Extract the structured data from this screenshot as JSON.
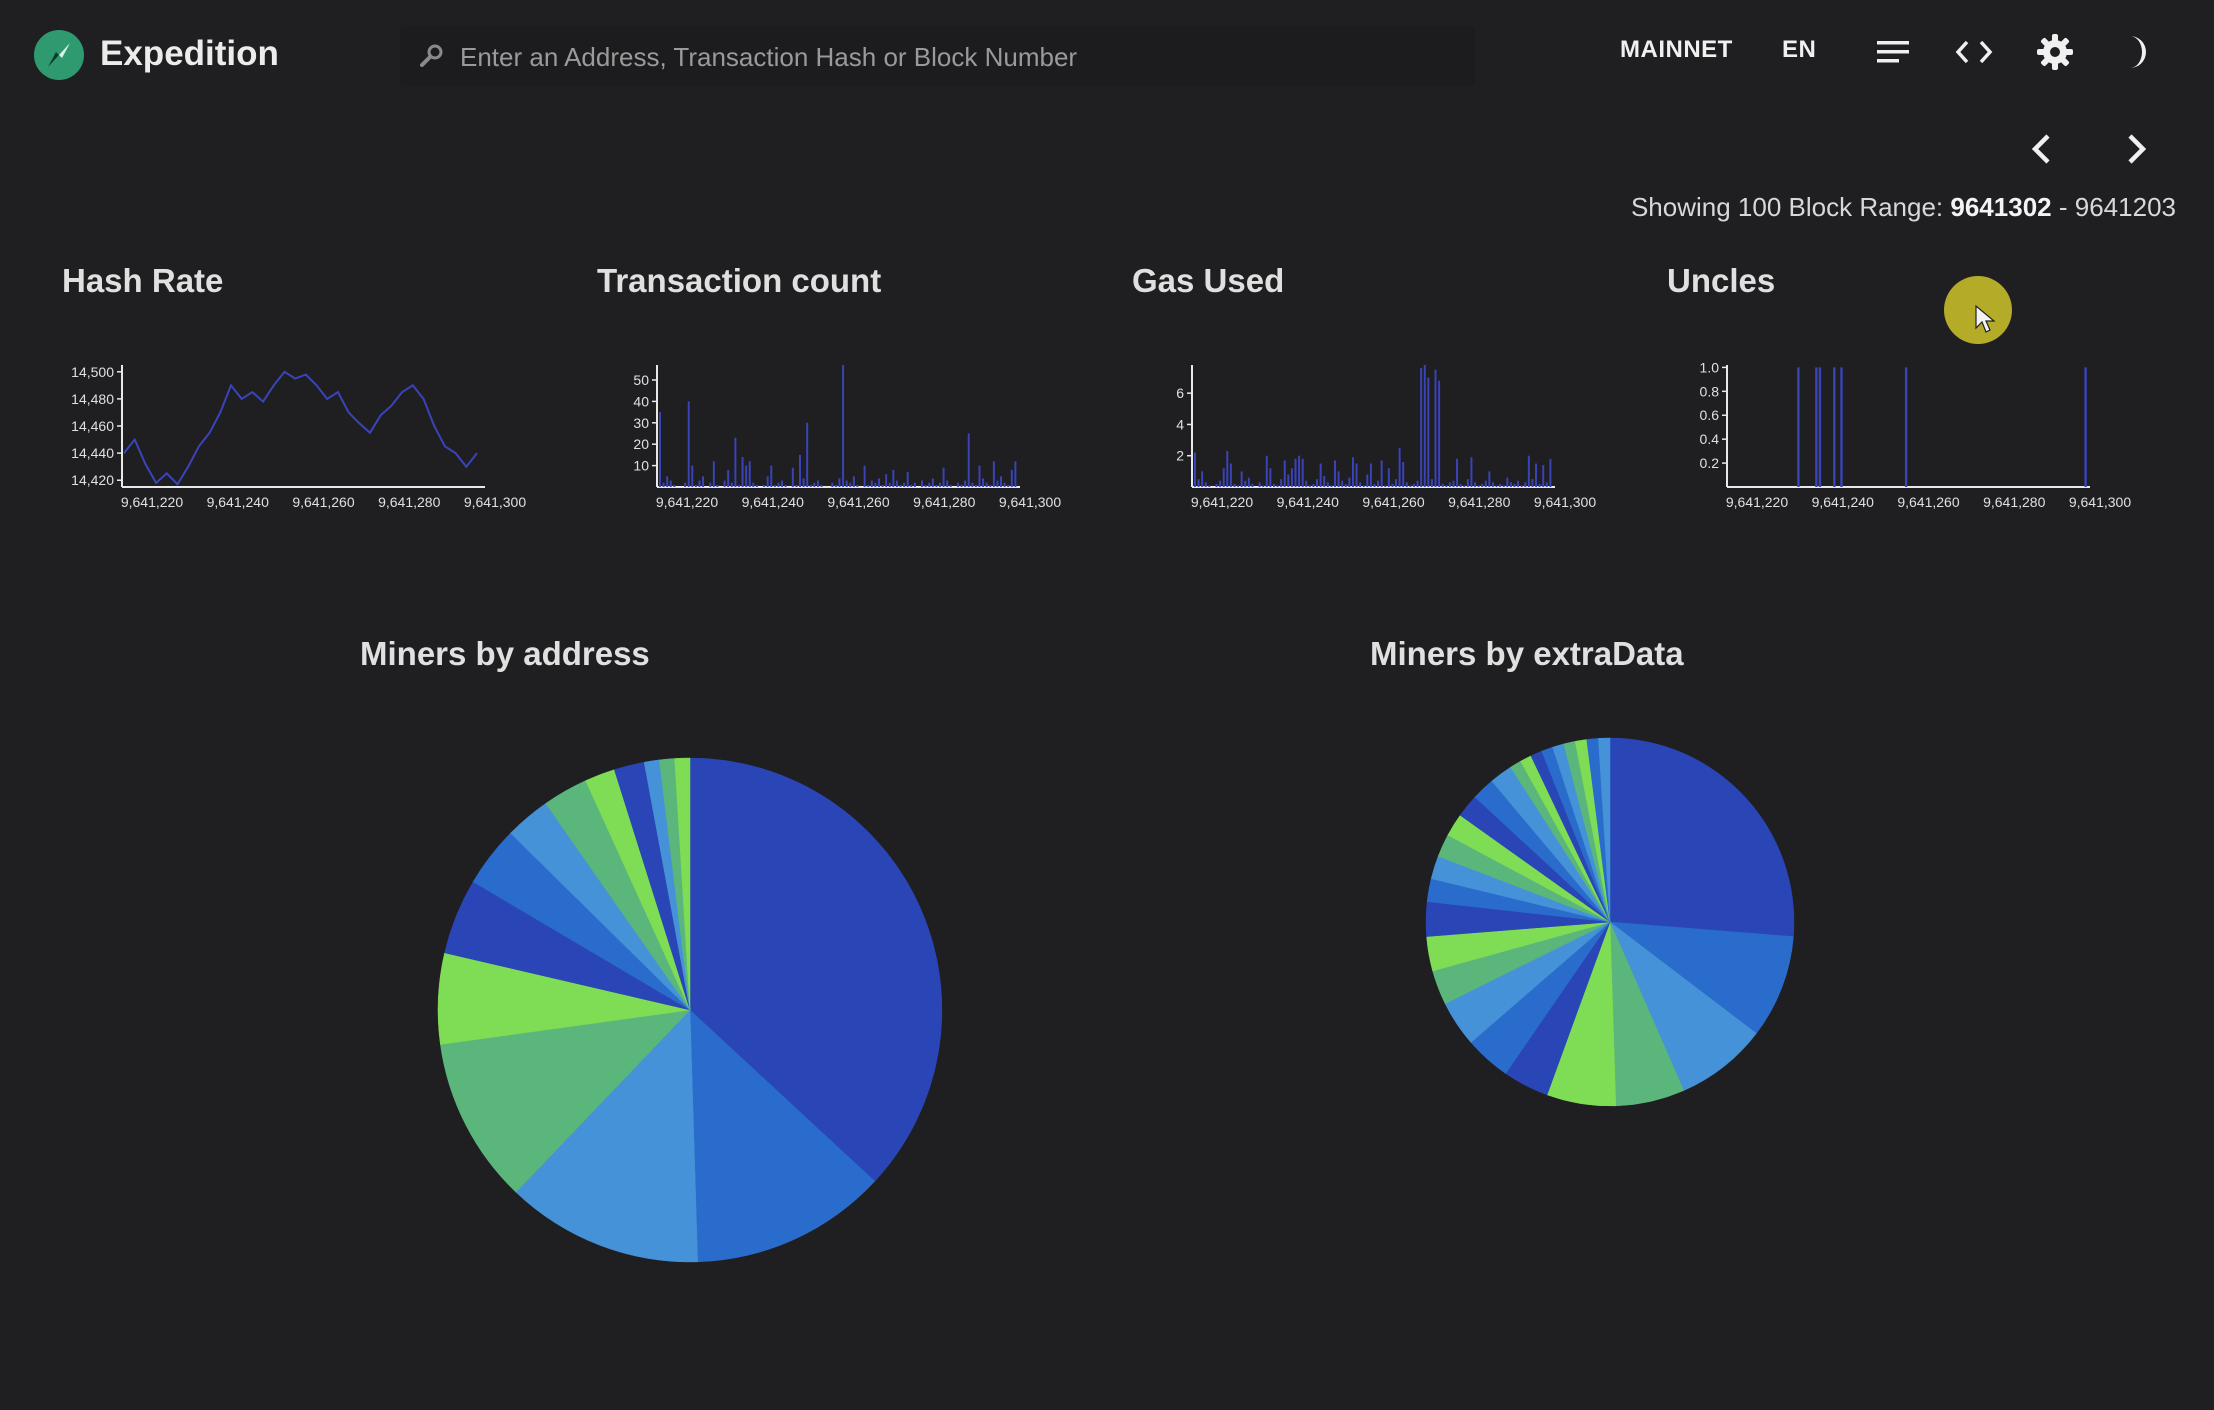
{
  "app": {
    "title": "Expedition"
  },
  "search": {
    "placeholder": "Enter an Address, Transaction Hash or Block Number"
  },
  "nav": {
    "network": "MAINNET",
    "language": "EN"
  },
  "range": {
    "prefix": "Showing 100 Block Range:",
    "from": "9641302",
    "separator": "-",
    "to": "9641203"
  },
  "icons": [
    "search-icon",
    "menu-icon",
    "code-icon",
    "gear-icon",
    "dark-mode-icon",
    "chevron-left-icon",
    "chevron-right-icon",
    "compass-icon"
  ],
  "colors": {
    "background": "#1f1e20",
    "line": "#3a44b8",
    "logo": "#2f9a6f"
  },
  "chart_data": [
    {
      "type": "line",
      "title": "Hash Rate",
      "x_ticks": [
        "9,641,220",
        "9,641,240",
        "9,641,260",
        "9,641,280",
        "9,641,300"
      ],
      "y_ticks": [
        "14,420",
        "14,440",
        "14,460",
        "14,480",
        "14,500"
      ],
      "ylim": [
        14415,
        14505
      ],
      "x": [
        9641203,
        9641206,
        9641209,
        9641212,
        9641215,
        9641218,
        9641221,
        9641224,
        9641227,
        9641230,
        9641233,
        9641236,
        9641239,
        9641242,
        9641245,
        9641248,
        9641251,
        9641254,
        9641257,
        9641260,
        9641263,
        9641266,
        9641269,
        9641272,
        9641275,
        9641278,
        9641281,
        9641284,
        9641287,
        9641290,
        9641293,
        9641296,
        9641299,
        9641302
      ],
      "values": [
        14440,
        14450,
        14432,
        14418,
        14425,
        14417,
        14430,
        14445,
        14455,
        14470,
        14490,
        14480,
        14485,
        14478,
        14490,
        14500,
        14495,
        14498,
        14490,
        14480,
        14485,
        14470,
        14462,
        14455,
        14468,
        14475,
        14485,
        14490,
        14480,
        14460,
        14445,
        14440,
        14430,
        14440
      ]
    },
    {
      "type": "bar",
      "title": "Transaction count",
      "x_ticks": [
        "9,641,220",
        "9,641,240",
        "9,641,260",
        "9,641,280",
        "9,641,300"
      ],
      "y_ticks": [
        "10",
        "20",
        "30",
        "40",
        "50"
      ],
      "ylim": [
        0,
        57
      ],
      "values": [
        35,
        2,
        5,
        3,
        1,
        0,
        0,
        2,
        40,
        10,
        1,
        3,
        5,
        0,
        2,
        12,
        1,
        0,
        3,
        8,
        2,
        23,
        1,
        14,
        10,
        12,
        2,
        1,
        0,
        1,
        5,
        10,
        1,
        2,
        3,
        1,
        0,
        9,
        1,
        15,
        4,
        30,
        1,
        2,
        3,
        1,
        0,
        0,
        2,
        1,
        4,
        57,
        3,
        2,
        5,
        1,
        0,
        10,
        1,
        3,
        2,
        4,
        1,
        6,
        2,
        8,
        3,
        1,
        2,
        7,
        1,
        2,
        0,
        3,
        1,
        2,
        4,
        1,
        2,
        9,
        3,
        1,
        0,
        2,
        1,
        3,
        25,
        2,
        1,
        10,
        4,
        2,
        1,
        12,
        3,
        5,
        2,
        1,
        8,
        12
      ]
    },
    {
      "type": "bar",
      "title": "Gas Used",
      "x_ticks": [
        "9,641,220",
        "9,641,240",
        "9,641,260",
        "9,641,280",
        "9,641,300"
      ],
      "y_ticks": [
        "2",
        "4",
        "6"
      ],
      "ylim": [
        0,
        7.8
      ],
      "values": [
        2.2,
        0.5,
        1.0,
        0.3,
        0.1,
        0.0,
        0.2,
        0.4,
        1.2,
        2.3,
        1.5,
        0.2,
        0.1,
        1.0,
        0.4,
        0.6,
        0.2,
        0.0,
        0.3,
        0.1,
        2.0,
        1.2,
        0.2,
        0.1,
        0.5,
        1.7,
        0.8,
        1.2,
        1.8,
        2.0,
        1.8,
        0.4,
        0.1,
        0.2,
        0.5,
        1.5,
        0.7,
        0.3,
        0.1,
        1.7,
        1.0,
        0.4,
        0.2,
        0.6,
        1.9,
        1.5,
        0.3,
        0.1,
        0.8,
        1.5,
        0.2,
        0.4,
        1.7,
        0.1,
        1.2,
        0.2,
        0.5,
        2.5,
        1.6,
        0.3,
        0.1,
        0.2,
        0.4,
        7.6,
        7.8,
        7.0,
        0.5,
        7.5,
        6.8,
        0.2,
        0.1,
        0.3,
        0.4,
        1.8,
        0.2,
        0.1,
        0.5,
        1.9,
        0.3,
        0.1,
        0.2,
        0.4,
        1.0,
        0.3,
        0.1,
        0.2,
        0.1,
        0.6,
        0.3,
        0.2,
        0.4,
        0.1,
        0.3,
        2.0,
        0.5,
        1.5,
        0.2,
        1.4,
        0.3,
        1.8
      ]
    },
    {
      "type": "bar",
      "title": "Uncles",
      "x_ticks": [
        "9,641,220",
        "9,641,240",
        "9,641,260",
        "9,641,280",
        "9,641,300"
      ],
      "y_ticks": [
        "0.2",
        "0.4",
        "0.6",
        "0.8",
        "1.0"
      ],
      "ylim": [
        0,
        1.02
      ],
      "uncle_positions": [
        19,
        24,
        25,
        29,
        31,
        49,
        99
      ],
      "count": 100
    },
    {
      "type": "pie",
      "title": "Miners by address",
      "values": [
        38,
        13,
        13,
        11,
        6,
        5,
        4,
        3,
        3,
        2,
        2,
        1,
        1,
        1
      ],
      "colors": [
        "#2a45b5",
        "#2a6ccc",
        "#4592d8",
        "#5bb67c",
        "#7fdc55",
        "#2a45b5",
        "#2a6ccc",
        "#4592d8",
        "#5bb67c",
        "#7fdc55",
        "#2a45b5",
        "#4592d8",
        "#5bb67c",
        "#7fdc55"
      ]
    },
    {
      "type": "pie",
      "title": "Miners by extraData",
      "values": [
        26,
        9,
        8,
        6,
        6,
        4,
        4,
        4,
        3,
        3,
        3,
        2,
        2,
        2,
        2,
        2,
        2,
        2,
        1,
        1,
        1,
        1,
        1,
        1,
        1,
        1,
        1
      ],
      "colors": [
        "#2a45b5",
        "#2a6ccc",
        "#4592d8",
        "#5bb67c",
        "#7fdc55",
        "#2a45b5",
        "#2a6ccc",
        "#4592d8",
        "#5bb67c",
        "#7fdc55",
        "#2a45b5",
        "#2a6ccc",
        "#4592d8",
        "#5bb67c",
        "#7fdc55",
        "#2a45b5",
        "#2a6ccc",
        "#4592d8",
        "#5bb67c",
        "#7fdc55",
        "#2a45b5",
        "#2a6ccc",
        "#4592d8",
        "#5bb67c",
        "#7fdc55",
        "#2a6ccc",
        "#4592d8"
      ]
    }
  ]
}
